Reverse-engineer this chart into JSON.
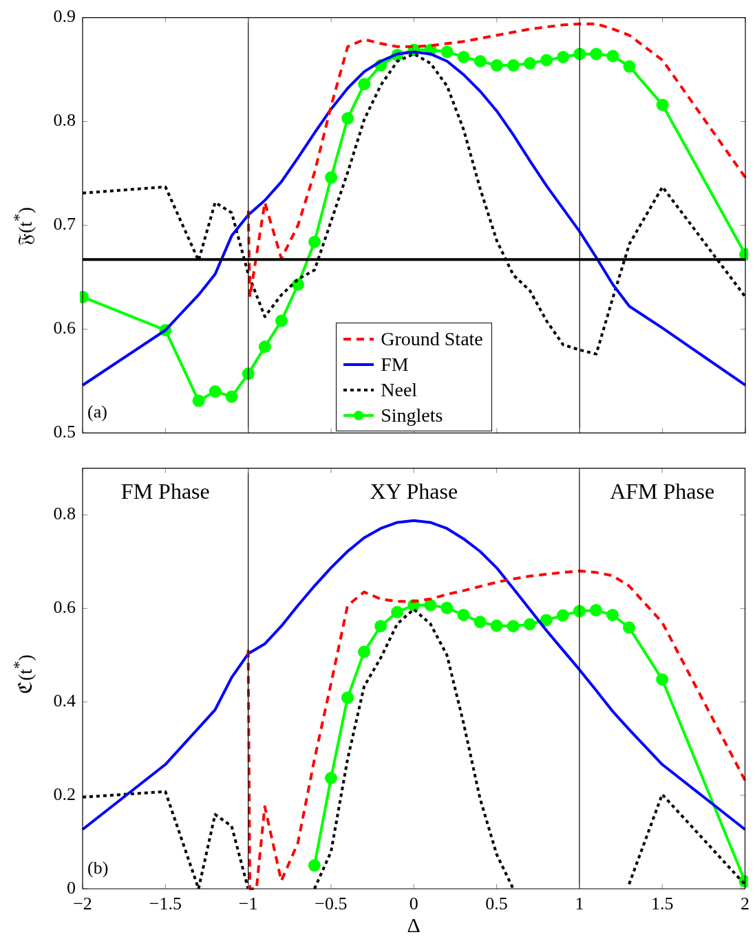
{
  "chart_data": [
    {
      "type": "line",
      "ylabel": "𝔉(t$^{*}$)",
      "xlim": [
        -2,
        2
      ],
      "xticks": [
        -2,
        -1.5,
        -1,
        -0.5,
        0,
        0.5,
        1,
        1.5,
        2
      ],
      "ylim": [
        0.5,
        0.9
      ],
      "yticks": [
        0.5,
        0.6,
        0.7,
        0.8,
        0.9
      ],
      "tick_labels": "y",
      "legend": "bottom",
      "annotations": [
        "(a)"
      ],
      "ref_lines": [
        {
          "axis": "x",
          "value": -1,
          "color": "#000000"
        },
        {
          "axis": "x",
          "value": 1,
          "color": "#000000"
        },
        {
          "axis": "y",
          "value": 0.667,
          "color": "#000000"
        }
      ],
      "x": [
        -2,
        -1.5,
        -1.3,
        -1.2,
        -1.1,
        -1,
        -0.9,
        -0.8,
        -0.7,
        -0.6,
        -0.5,
        -0.4,
        -0.3,
        -0.2,
        -0.1,
        0,
        0.1,
        0.2,
        0.3,
        0.4,
        0.5,
        0.6,
        0.7,
        0.8,
        0.9,
        1,
        1.1,
        1.2,
        1.3,
        1.5,
        2
      ],
      "series": [
        {
          "name": "Ground State",
          "color": "#ff0000",
          "line_style": "dashed",
          "marker": "none",
          "x": [
            -1,
            -0.99,
            -0.9,
            -0.8,
            -0.7,
            -0.6,
            -0.5,
            -0.4,
            -0.3,
            -0.2,
            -0.1,
            0,
            0.1,
            0.2,
            0.3,
            0.4,
            0.5,
            0.6,
            0.7,
            0.8,
            0.9,
            1,
            1.1,
            1.2,
            1.3,
            1.5,
            2
          ],
          "values": [
            0.714,
            0.631,
            0.722,
            0.668,
            0.7,
            0.751,
            0.815,
            0.872,
            0.879,
            0.875,
            0.872,
            0.872,
            0.873,
            0.875,
            0.877,
            0.88,
            0.883,
            0.886,
            0.889,
            0.891,
            0.893,
            0.894,
            0.894,
            0.889,
            0.883,
            0.859,
            0.746
          ]
        },
        {
          "name": "FM",
          "color": "#0000ff",
          "line_style": "solid",
          "marker": "none",
          "values": [
            0.546,
            0.599,
            0.633,
            0.653,
            0.69,
            0.71,
            0.724,
            0.742,
            0.765,
            0.789,
            0.812,
            0.832,
            0.848,
            0.858,
            0.865,
            0.867,
            0.865,
            0.858,
            0.845,
            0.829,
            0.81,
            0.787,
            0.762,
            0.738,
            0.716,
            0.694,
            0.669,
            0.643,
            0.622,
            0.601,
            0.546
          ]
        },
        {
          "name": "Neel",
          "color": "#000000",
          "line_style": "dotted",
          "marker": "none",
          "values": [
            0.731,
            0.737,
            0.666,
            0.722,
            0.712,
            0.653,
            0.612,
            0.633,
            0.648,
            0.657,
            0.704,
            0.751,
            0.802,
            0.835,
            0.858,
            0.865,
            0.856,
            0.834,
            0.792,
            0.735,
            0.685,
            0.652,
            0.637,
            0.608,
            0.585,
            0.58,
            0.576,
            0.63,
            0.682,
            0.737,
            0.631
          ]
        },
        {
          "name": "Singlets",
          "color": "#00ff00",
          "line_style": "solid",
          "marker": "circle",
          "values": [
            0.631,
            0.599,
            0.531,
            0.54,
            0.535,
            0.557,
            0.583,
            0.608,
            0.643,
            0.684,
            0.746,
            0.803,
            0.836,
            0.854,
            0.864,
            0.869,
            0.869,
            0.867,
            0.862,
            0.858,
            0.854,
            0.854,
            0.856,
            0.859,
            0.862,
            0.865,
            0.865,
            0.863,
            0.853,
            0.816,
            0.672
          ]
        }
      ]
    },
    {
      "type": "line",
      "ylabel": "ℭ(t$^{*}$)",
      "xlabel": "Δ",
      "xlim": [
        -2,
        2
      ],
      "xticks": [
        {
          "value": -2,
          "label": "−2"
        },
        {
          "value": -1.5,
          "label": "−1.5"
        },
        {
          "value": -1,
          "label": "−1"
        },
        {
          "value": -0.5,
          "label": "−0.5"
        },
        0,
        0.5,
        1,
        1.5,
        2
      ],
      "ylim": [
        0,
        0.9
      ],
      "yticks": [
        0,
        0.2,
        0.4,
        0.6,
        0.8
      ],
      "annotations": [
        "(b)",
        "FM Phase",
        "XY Phase",
        "AFM Phase"
      ],
      "ref_lines": [
        {
          "axis": "x",
          "value": -1,
          "color": "#000000"
        },
        {
          "axis": "x",
          "value": 1,
          "color": "#000000"
        }
      ],
      "x": [
        -2,
        -1.5,
        -1.3,
        -1.2,
        -1.1,
        -1,
        -0.9,
        -0.8,
        -0.7,
        -0.6,
        -0.5,
        -0.4,
        -0.3,
        -0.2,
        -0.1,
        0,
        0.1,
        0.2,
        0.3,
        0.4,
        0.5,
        0.6,
        0.7,
        0.8,
        0.9,
        1,
        1.1,
        1.2,
        1.3,
        1.5,
        2
      ],
      "series": [
        {
          "color": "#ff0000",
          "line_style": "dashed",
          "marker": "none",
          "x": [
            -1,
            -0.99,
            -0.95,
            -0.9,
            -0.8,
            -0.7,
            -0.6,
            -0.5,
            -0.4,
            -0.3,
            -0.2,
            -0.1,
            0,
            0.1,
            0.2,
            0.3,
            0.4,
            0.5,
            0.6,
            0.7,
            0.8,
            0.9,
            1,
            1.1,
            1.2,
            1.3,
            1.5,
            2
          ],
          "values": [
            0.511,
            0,
            0,
            0.176,
            0.017,
            0.098,
            0.277,
            0.439,
            0.606,
            0.635,
            0.62,
            0.615,
            0.615,
            0.62,
            0.63,
            0.638,
            0.647,
            0.656,
            0.663,
            0.669,
            0.673,
            0.677,
            0.68,
            0.677,
            0.67,
            0.648,
            0.57,
            0.232
          ]
        },
        {
          "color": "#0000ff",
          "line_style": "solid",
          "marker": "none",
          "values": [
            0.127,
            0.266,
            0.344,
            0.383,
            0.452,
            0.503,
            0.524,
            0.562,
            0.606,
            0.648,
            0.687,
            0.722,
            0.751,
            0.771,
            0.784,
            0.788,
            0.784,
            0.771,
            0.749,
            0.722,
            0.687,
            0.643,
            0.598,
            0.553,
            0.511,
            0.469,
            0.425,
            0.38,
            0.341,
            0.266,
            0.127
          ]
        },
        {
          "color": "#000000",
          "line_style": "dotted",
          "marker": "none",
          "values": [
            0.196,
            0.208,
            0,
            0.159,
            0.134,
            0,
            null,
            null,
            null,
            0,
            0.079,
            0.277,
            0.433,
            0.494,
            0.567,
            0.598,
            0.567,
            0.5,
            0.355,
            0.193,
            0.074,
            0,
            null,
            null,
            null,
            null,
            null,
            null,
            0.01,
            0.202,
            0.009
          ]
        },
        {
          "color": "#00ff00",
          "line_style": "solid",
          "marker": "circle",
          "x": [
            -0.6,
            -0.5,
            -0.4,
            -0.3,
            -0.2,
            -0.1,
            0,
            0.1,
            0.2,
            0.3,
            0.4,
            0.5,
            0.6,
            0.7,
            0.8,
            0.9,
            1,
            1.1,
            1.2,
            1.3,
            1.5,
            2
          ],
          "values": [
            0.05,
            0.237,
            0.409,
            0.507,
            0.562,
            0.592,
            0.607,
            0.607,
            0.601,
            0.586,
            0.571,
            0.563,
            0.562,
            0.566,
            0.575,
            0.585,
            0.594,
            0.596,
            0.586,
            0.559,
            0.448,
            0.016
          ]
        }
      ]
    }
  ]
}
